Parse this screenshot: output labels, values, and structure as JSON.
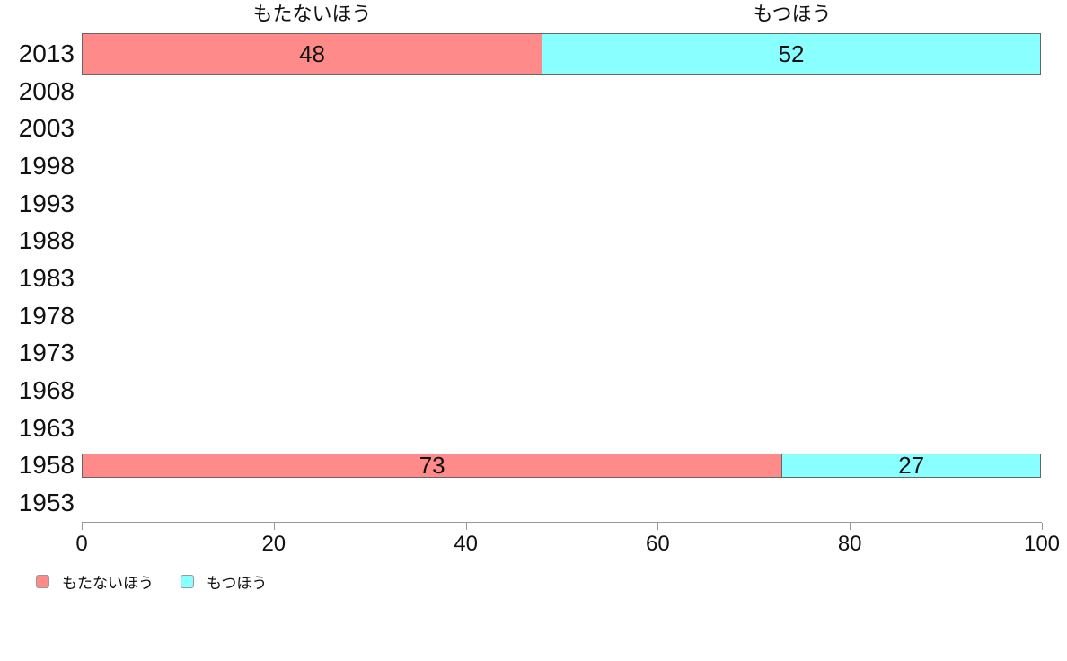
{
  "page": {
    "background_color": "#ffffff"
  },
  "chart_data": {
    "type": "bar",
    "orientation": "horizontal",
    "stacked": true,
    "title": "",
    "column_headers": [
      "もたないほう",
      "もつほう"
    ],
    "categories": [
      "2013",
      "2008",
      "2003",
      "1998",
      "1993",
      "1988",
      "1983",
      "1978",
      "1973",
      "1968",
      "1963",
      "1958",
      "1953"
    ],
    "series": [
      {
        "name": "もたないほう",
        "color": "#ff8a8a",
        "values": [
          48,
          null,
          null,
          null,
          null,
          null,
          null,
          null,
          null,
          null,
          null,
          73,
          null
        ]
      },
      {
        "name": "もつほう",
        "color": "#8affff",
        "values": [
          52,
          null,
          null,
          null,
          null,
          null,
          null,
          null,
          null,
          null,
          null,
          27,
          null
        ]
      }
    ],
    "x_ticks": [
      0,
      20,
      40,
      60,
      80,
      100
    ],
    "xlim": [
      0,
      100
    ],
    "grid": false,
    "legend": {
      "position": "bottom-left",
      "items": [
        {
          "label": "もたないほう",
          "color": "#ff8a8a"
        },
        {
          "label": "もつほう",
          "color": "#8affff"
        }
      ]
    },
    "styles": {
      "bar_border_color": "#666666",
      "axis_color": "#999999",
      "text_color": "#111111"
    },
    "layout_hints": {
      "bar_thickness_default_px": 46,
      "bar_thickness_by_category_px": {
        "2013": 46,
        "1958": 27
      }
    }
  }
}
